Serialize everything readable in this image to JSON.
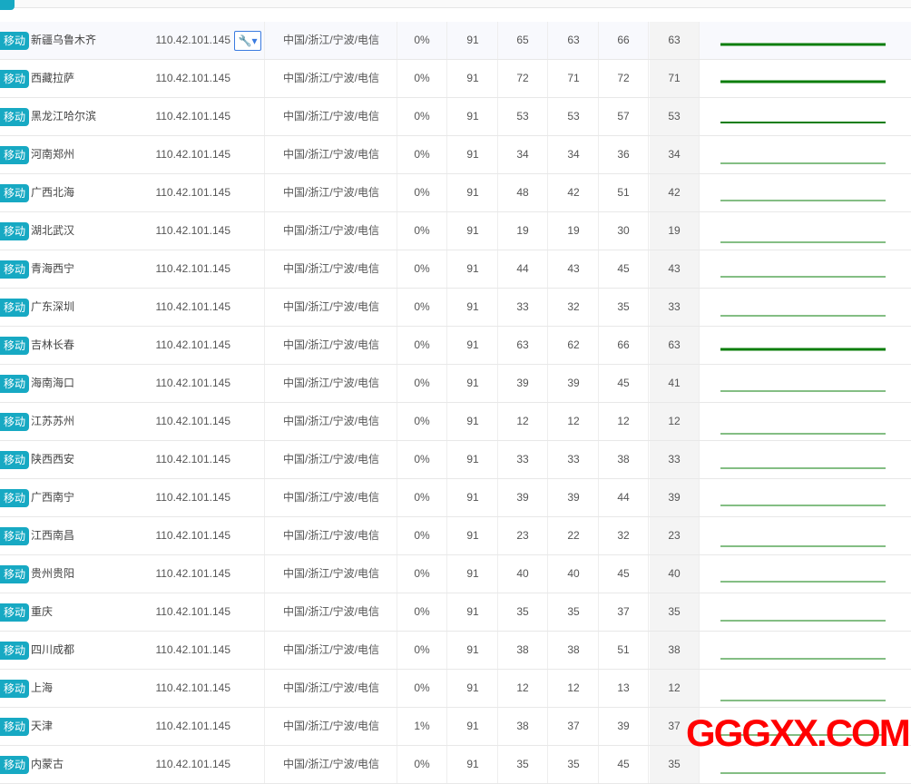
{
  "tag_label": "移动",
  "tool_icon": "wrench-dropdown-icon",
  "colors": {
    "tag": "#17a9c3",
    "line": "#0a7d0a",
    "watermark": "#ff0000"
  },
  "watermark": "GGGXX.COM",
  "rows": [
    {
      "name": "新疆乌鲁木齐",
      "ip": "110.42.101.145",
      "loc": "中国/浙江/宁波/电信",
      "loss": "0%",
      "sent": "91",
      "last": "65",
      "best": "63",
      "worst": "66",
      "avg": "63"
    },
    {
      "name": "西藏拉萨",
      "ip": "110.42.101.145",
      "loc": "中国/浙江/宁波/电信",
      "loss": "0%",
      "sent": "91",
      "last": "72",
      "best": "71",
      "worst": "72",
      "avg": "71"
    },
    {
      "name": "黑龙江哈尔滨",
      "ip": "110.42.101.145",
      "loc": "中国/浙江/宁波/电信",
      "loss": "0%",
      "sent": "91",
      "last": "53",
      "best": "53",
      "worst": "57",
      "avg": "53"
    },
    {
      "name": "河南郑州",
      "ip": "110.42.101.145",
      "loc": "中国/浙江/宁波/电信",
      "loss": "0%",
      "sent": "91",
      "last": "34",
      "best": "34",
      "worst": "36",
      "avg": "34"
    },
    {
      "name": "广西北海",
      "ip": "110.42.101.145",
      "loc": "中国/浙江/宁波/电信",
      "loss": "0%",
      "sent": "91",
      "last": "48",
      "best": "42",
      "worst": "51",
      "avg": "42"
    },
    {
      "name": "湖北武汉",
      "ip": "110.42.101.145",
      "loc": "中国/浙江/宁波/电信",
      "loss": "0%",
      "sent": "91",
      "last": "19",
      "best": "19",
      "worst": "30",
      "avg": "19"
    },
    {
      "name": "青海西宁",
      "ip": "110.42.101.145",
      "loc": "中国/浙江/宁波/电信",
      "loss": "0%",
      "sent": "91",
      "last": "44",
      "best": "43",
      "worst": "45",
      "avg": "43"
    },
    {
      "name": "广东深圳",
      "ip": "110.42.101.145",
      "loc": "中国/浙江/宁波/电信",
      "loss": "0%",
      "sent": "91",
      "last": "33",
      "best": "32",
      "worst": "35",
      "avg": "33"
    },
    {
      "name": "吉林长春",
      "ip": "110.42.101.145",
      "loc": "中国/浙江/宁波/电信",
      "loss": "0%",
      "sent": "91",
      "last": "63",
      "best": "62",
      "worst": "66",
      "avg": "63"
    },
    {
      "name": "海南海口",
      "ip": "110.42.101.145",
      "loc": "中国/浙江/宁波/电信",
      "loss": "0%",
      "sent": "91",
      "last": "39",
      "best": "39",
      "worst": "45",
      "avg": "41"
    },
    {
      "name": "江苏苏州",
      "ip": "110.42.101.145",
      "loc": "中国/浙江/宁波/电信",
      "loss": "0%",
      "sent": "91",
      "last": "12",
      "best": "12",
      "worst": "12",
      "avg": "12"
    },
    {
      "name": "陕西西安",
      "ip": "110.42.101.145",
      "loc": "中国/浙江/宁波/电信",
      "loss": "0%",
      "sent": "91",
      "last": "33",
      "best": "33",
      "worst": "38",
      "avg": "33"
    },
    {
      "name": "广西南宁",
      "ip": "110.42.101.145",
      "loc": "中国/浙江/宁波/电信",
      "loss": "0%",
      "sent": "91",
      "last": "39",
      "best": "39",
      "worst": "44",
      "avg": "39"
    },
    {
      "name": "江西南昌",
      "ip": "110.42.101.145",
      "loc": "中国/浙江/宁波/电信",
      "loss": "0%",
      "sent": "91",
      "last": "23",
      "best": "22",
      "worst": "32",
      "avg": "23"
    },
    {
      "name": "贵州贵阳",
      "ip": "110.42.101.145",
      "loc": "中国/浙江/宁波/电信",
      "loss": "0%",
      "sent": "91",
      "last": "40",
      "best": "40",
      "worst": "45",
      "avg": "40"
    },
    {
      "name": "重庆",
      "ip": "110.42.101.145",
      "loc": "中国/浙江/宁波/电信",
      "loss": "0%",
      "sent": "91",
      "last": "35",
      "best": "35",
      "worst": "37",
      "avg": "35"
    },
    {
      "name": "四川成都",
      "ip": "110.42.101.145",
      "loc": "中国/浙江/宁波/电信",
      "loss": "0%",
      "sent": "91",
      "last": "38",
      "best": "38",
      "worst": "51",
      "avg": "38"
    },
    {
      "name": "上海",
      "ip": "110.42.101.145",
      "loc": "中国/浙江/宁波/电信",
      "loss": "0%",
      "sent": "91",
      "last": "12",
      "best": "12",
      "worst": "13",
      "avg": "12"
    },
    {
      "name": "天津",
      "ip": "110.42.101.145",
      "loc": "中国/浙江/宁波/电信",
      "loss": "1%",
      "sent": "91",
      "last": "38",
      "best": "37",
      "worst": "39",
      "avg": "37"
    },
    {
      "name": "内蒙古",
      "ip": "110.42.101.145",
      "loc": "中国/浙江/宁波/电信",
      "loss": "0%",
      "sent": "91",
      "last": "35",
      "best": "35",
      "worst": "45",
      "avg": "35"
    }
  ]
}
